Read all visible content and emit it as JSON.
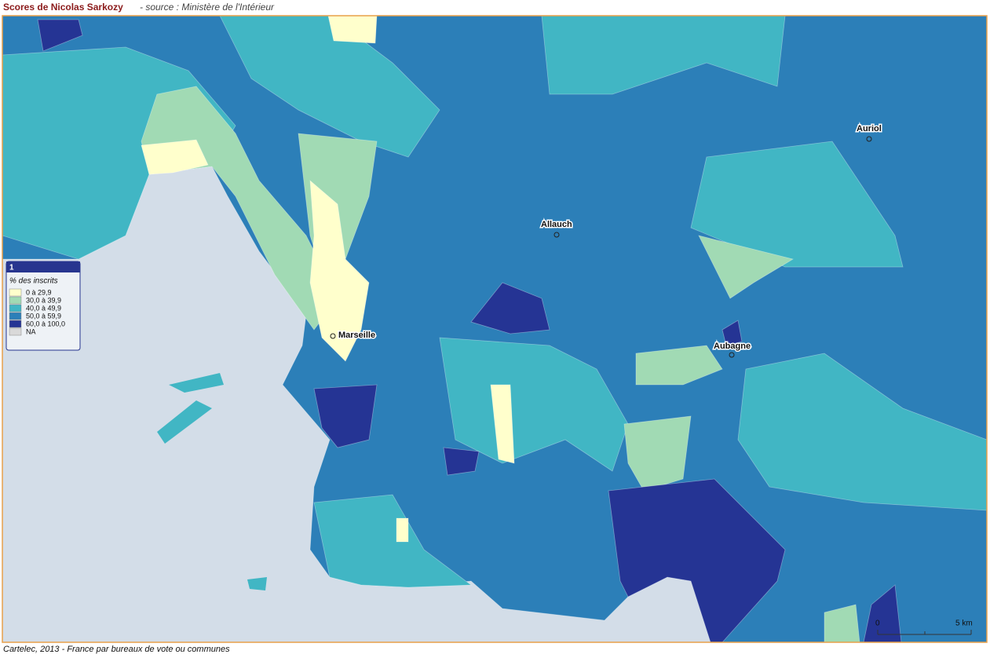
{
  "header": {
    "title": "Scores de Nicolas Sarkozy",
    "source": "- source : Ministère de l'Intérieur"
  },
  "legend": {
    "id": "1",
    "title": "% des inscrits",
    "items": [
      {
        "label": "0 à 29,9",
        "color": "#ffffcc"
      },
      {
        "label": "30,0 à 39,9",
        "color": "#a1dab4"
      },
      {
        "label": "40,0 à 49,9",
        "color": "#41b6c4"
      },
      {
        "label": "50,0 à 59,9",
        "color": "#2c7fb8"
      },
      {
        "label": "60,0 à 100,0",
        "color": "#253494"
      },
      {
        "label": "NA",
        "color": "#d9d9d9"
      }
    ]
  },
  "places": [
    {
      "label": "Auriol"
    },
    {
      "label": "Allauch"
    },
    {
      "label": "Marseille"
    },
    {
      "label": "Aubagne"
    }
  ],
  "scale": {
    "start": "0",
    "end": "5 km"
  },
  "footer": "Cartelec, 2013 - France par bureaux de vote ou communes"
}
